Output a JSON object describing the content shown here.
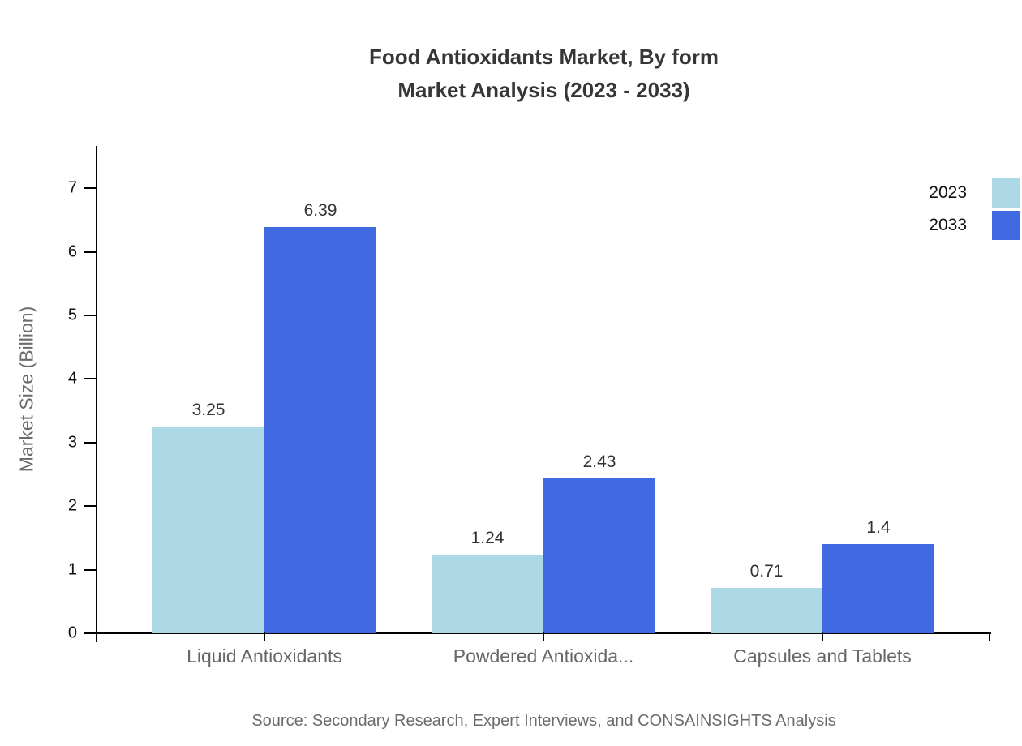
{
  "page": {
    "background": "#ffffff"
  },
  "chart_data": {
    "type": "bar",
    "title_lines": [
      "Food Antioxidants Market, By form",
      "Market Analysis (2023 - 2033)"
    ],
    "ylabel": "Market Size (Billion)",
    "xlabel": "",
    "categories": [
      "Liquid Antioxidants",
      "Powdered Antioxida...",
      "Capsules and Tablets"
    ],
    "series": [
      {
        "name": "2023",
        "color": "#add8e6",
        "values": [
          3.25,
          1.24,
          0.71
        ],
        "value_labels": [
          "3.25",
          "1.24",
          "0.71"
        ]
      },
      {
        "name": "2033",
        "color": "#4169e1",
        "values": [
          6.39,
          2.43,
          1.4
        ],
        "value_labels": [
          "6.39",
          "2.43",
          "1.4"
        ]
      }
    ],
    "ylim": [
      0,
      7
    ],
    "yticks": [
      0,
      1,
      2,
      3,
      4,
      5,
      6,
      7
    ],
    "grid": false,
    "legend_position": "top-right",
    "source": "Source: Secondary Research, Expert Interviews, and CONSAINSIGHTS Analysis"
  },
  "colors": {
    "title": "#363636",
    "axis": "#000000",
    "tick_label": "#111111",
    "category_label": "#666666",
    "value_label": "#333333",
    "muted_text": "#6b6b6b",
    "series_2023": "#add8e6",
    "series_2033": "#4169e1"
  }
}
